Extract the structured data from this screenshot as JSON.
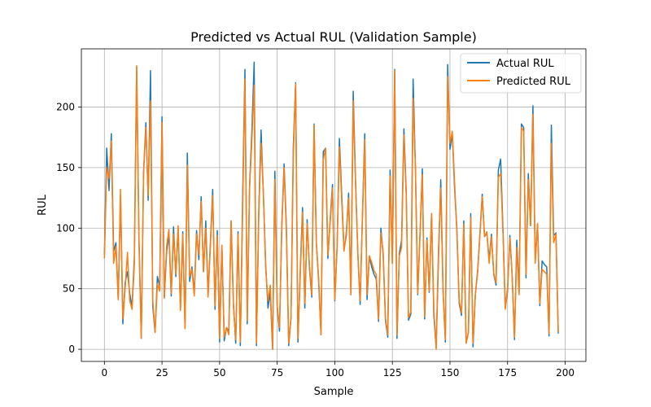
{
  "chart_data": {
    "type": "line",
    "title": "Predicted vs Actual RUL (Validation Sample)",
    "xlabel": "Sample",
    "ylabel": "RUL",
    "xlim": [
      -10,
      209
    ],
    "ylim": [
      -10,
      248
    ],
    "xticks": [
      0,
      25,
      50,
      75,
      100,
      125,
      150,
      175,
      200
    ],
    "yticks": [
      0,
      50,
      100,
      150,
      200
    ],
    "grid": true,
    "legend_position": "upper right",
    "series": [
      {
        "name": "Actual RUL",
        "color": "#1f77b4",
        "values": [
          78,
          166,
          131,
          178,
          81,
          88,
          41,
          128,
          21,
          55,
          64,
          46,
          35,
          76,
          233,
          92,
          9,
          146,
          187,
          123,
          230,
          35,
          14,
          60,
          52,
          192,
          43,
          80,
          95,
          44,
          101,
          60,
          100,
          33,
          97,
          18,
          162,
          56,
          68,
          46,
          98,
          74,
          126,
          64,
          106,
          45,
          88,
          132,
          33,
          98,
          6,
          85,
          7,
          18,
          15,
          106,
          38,
          5,
          97,
          3,
          125,
          231,
          21,
          134,
          180,
          237,
          3,
          114,
          181,
          128,
          70,
          34,
          47,
          0,
          147,
          34,
          15,
          103,
          153,
          100,
          3,
          26,
          167,
          220,
          6,
          64,
          117,
          34,
          107,
          67,
          43,
          186,
          88,
          56,
          12,
          163,
          166,
          75,
          107,
          136,
          40,
          84,
          174,
          128,
          82,
          94,
          129,
          45,
          213,
          140,
          79,
          37,
          110,
          178,
          41,
          77,
          68,
          62,
          58,
          23,
          100,
          78,
          24,
          10,
          148,
          71,
          231,
          9,
          79,
          90,
          182,
          130,
          24,
          29,
          223,
          150,
          45,
          95,
          149,
          25,
          92,
          47,
          112,
          28,
          1,
          74,
          140,
          49,
          6,
          235,
          165,
          178,
          133,
          99,
          38,
          28,
          106,
          5,
          14,
          112,
          2,
          45,
          65,
          95,
          128,
          93,
          96,
          74,
          95,
          62,
          53,
          148,
          157,
          99,
          34,
          48,
          94,
          60,
          8,
          90,
          47,
          186,
          183,
          59,
          145,
          102,
          201,
          73,
          103,
          36,
          73,
          70,
          68,
          11,
          185,
          94,
          96,
          13
        ],
        "show_in_legend": true
      },
      {
        "name": "Predicted RUL",
        "color": "#ff7f0e",
        "values": [
          75,
          150,
          141,
          172,
          71,
          85,
          41,
          132,
          25,
          50,
          80,
          40,
          33,
          70,
          234,
          88,
          9,
          145,
          183,
          127,
          205,
          40,
          14,
          54,
          48,
          187,
          42,
          85,
          99,
          46,
          95,
          62,
          102,
          32,
          95,
          17,
          152,
          60,
          66,
          44,
          95,
          78,
          122,
          64,
          100,
          43,
          85,
          127,
          36,
          94,
          9,
          86,
          10,
          18,
          12,
          106,
          36,
          8,
          95,
          6,
          113,
          223,
          24,
          132,
          172,
          218,
          5,
          110,
          170,
          130,
          67,
          40,
          53,
          0,
          140,
          36,
          18,
          100,
          150,
          96,
          5,
          27,
          160,
          219,
          9,
          60,
          113,
          38,
          104,
          69,
          45,
          185,
          87,
          59,
          12,
          156,
          166,
          78,
          104,
          133,
          41,
          84,
          167,
          123,
          81,
          97,
          125,
          45,
          205,
          137,
          80,
          40,
          108,
          173,
          45,
          77,
          72,
          65,
          62,
          25,
          96,
          80,
          26,
          12,
          143,
          71,
          230,
          12,
          77,
          84,
          177,
          127,
          26,
          31,
          207,
          150,
          46,
          96,
          144,
          27,
          90,
          48,
          112,
          33,
          0,
          82,
          133,
          47,
          8,
          225,
          170,
          180,
          138,
          96,
          40,
          30,
          103,
          5,
          14,
          109,
          5,
          45,
          63,
          94,
          126,
          93,
          97,
          71,
          93,
          63,
          55,
          142,
          145,
          96,
          33,
          51,
          92,
          60,
          10,
          84,
          45,
          183,
          180,
          62,
          140,
          102,
          194,
          71,
          104,
          38,
          66,
          64,
          62,
          13,
          170,
          88,
          95,
          14
        ]
      }
    ]
  }
}
